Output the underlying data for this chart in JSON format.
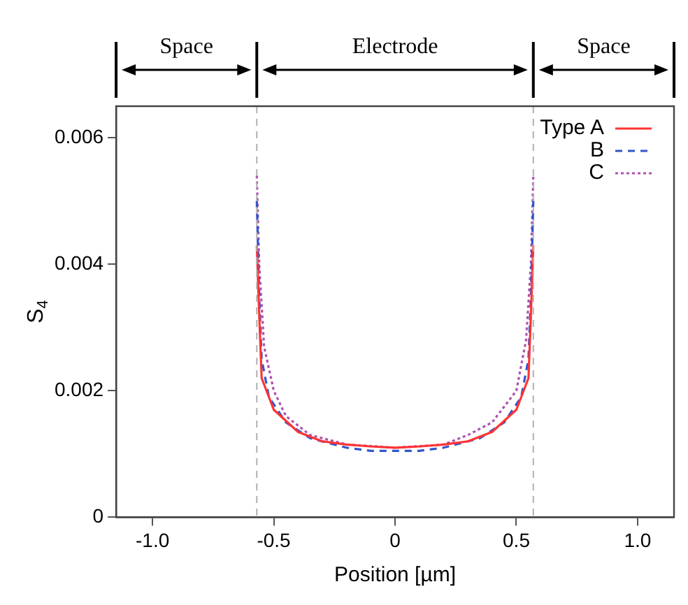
{
  "chart_data": {
    "type": "line",
    "xlabel": "Position [µm]",
    "ylabel": "S$_{4}$",
    "xlim": [
      -1.15,
      1.15
    ],
    "ylim": [
      0,
      0.0065
    ],
    "xticks": [
      {
        "value": -1,
        "label": "-1.0"
      },
      -0.5,
      0,
      0.5,
      {
        "value": 1,
        "label": "1.0"
      }
    ],
    "yticks": [
      0,
      0.002,
      0.004,
      0.006
    ],
    "grid": false,
    "legend": "top right",
    "marker": "none",
    "ref_lines": [
      {
        "axis": "x",
        "value": -0.57,
        "color": "#b0b0b0",
        "line_style": "dashed"
      },
      {
        "axis": "x",
        "value": 0.57,
        "color": "#b0b0b0",
        "line_style": "dashed"
      }
    ],
    "annotations": [
      "Space",
      "Electrode",
      "Space"
    ],
    "series": [
      {
        "name": "Type A",
        "color": "#ff3333",
        "line_style": "solid",
        "x": [
          -0.57,
          -0.56,
          -0.55,
          -0.5,
          -0.4,
          -0.3,
          -0.2,
          -0.1,
          0,
          0.1,
          0.2,
          0.3,
          0.4,
          0.5,
          0.55,
          0.56,
          0.57
        ],
        "values": [
          0.0043,
          0.0032,
          0.0022,
          0.0017,
          0.00135,
          0.0012,
          0.00115,
          0.00112,
          0.0011,
          0.00112,
          0.00115,
          0.0012,
          0.00135,
          0.0017,
          0.0022,
          0.0032,
          0.0043
        ]
      },
      {
        "name": "B",
        "color": "#3355cc",
        "line_style": "dashed",
        "x": [
          -0.57,
          -0.56,
          -0.55,
          -0.52,
          -0.45,
          -0.35,
          -0.2,
          -0.1,
          0,
          0.1,
          0.2,
          0.35,
          0.45,
          0.52,
          0.55,
          0.56,
          0.57
        ],
        "values": [
          0.005,
          0.0035,
          0.0025,
          0.0019,
          0.0015,
          0.00125,
          0.0011,
          0.00105,
          0.00105,
          0.00105,
          0.0011,
          0.00125,
          0.0015,
          0.0019,
          0.0025,
          0.0035,
          0.005
        ]
      },
      {
        "name": "C",
        "color": "#b050b0",
        "line_style": "dotted",
        "x": [
          -0.57,
          -0.56,
          -0.54,
          -0.5,
          -0.45,
          -0.35,
          -0.2,
          0,
          0.2,
          0.3,
          0.4,
          0.5,
          0.54,
          0.56,
          0.57
        ],
        "values": [
          0.0054,
          0.004,
          0.0027,
          0.002,
          0.0016,
          0.0013,
          0.00115,
          0.0011,
          0.00115,
          0.0013,
          0.0015,
          0.002,
          0.0028,
          0.004,
          0.0054
        ]
      }
    ]
  }
}
